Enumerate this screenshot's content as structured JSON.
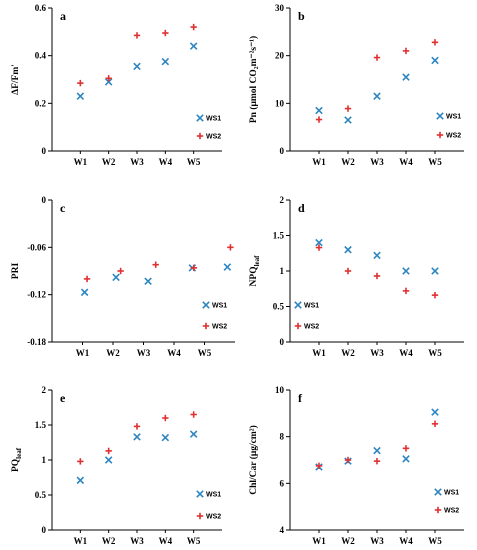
{
  "colors": {
    "WS1": "#2e86c1",
    "WS2": "#e03030"
  },
  "chart_data": [
    {
      "type": "scatter",
      "letter": "a",
      "ylabel": "ΔF/Fm'",
      "ylim": [
        0,
        0.6
      ],
      "yticks": [
        0,
        0.2,
        0.4,
        0.6
      ],
      "ytick_labels": [
        "0",
        "0.2",
        "0.4",
        "0.6"
      ],
      "categories": [
        "W1",
        "W2",
        "W3",
        "W4",
        "W5"
      ],
      "legend": [
        "WS1",
        "WS2"
      ],
      "series": [
        {
          "name": "WS1",
          "values": [
            0.23,
            0.29,
            0.355,
            0.375,
            0.44
          ]
        },
        {
          "name": "WS2",
          "values": [
            0.285,
            0.305,
            0.485,
            0.495,
            0.52
          ]
        }
      ]
    },
    {
      "type": "scatter",
      "letter": "b",
      "ylabel": "Pn (μmol CO₂m⁻²s⁻¹)",
      "ylim": [
        0,
        30
      ],
      "yticks": [
        0,
        10,
        20,
        30
      ],
      "ytick_labels": [
        "0",
        "10",
        "20",
        "30"
      ],
      "categories": [
        "W1",
        "W2",
        "W3",
        "W4",
        "W5"
      ],
      "legend": [
        "WS1",
        "WS2"
      ],
      "series": [
        {
          "name": "WS1",
          "values": [
            8.5,
            6.5,
            11.5,
            15.5,
            19.0
          ]
        },
        {
          "name": "WS2",
          "values": [
            6.6,
            8.9,
            19.6,
            21.0,
            22.8
          ]
        }
      ]
    },
    {
      "type": "scatter",
      "letter": "c",
      "ylabel": "PRI",
      "ylim": [
        -0.18,
        0
      ],
      "yticks": [
        0,
        -0.06,
        -0.12,
        -0.18
      ],
      "ytick_labels": [
        "0",
        "-0.06",
        "-0.12",
        "-0.18"
      ],
      "categories": [
        "W1",
        "W2",
        "W3",
        "W4",
        "W5"
      ],
      "legend": [
        "WS1",
        "WS2"
      ],
      "series": [
        {
          "name": "WS1",
          "x": [
            1.07,
            2.1,
            3.15,
            4.6,
            5.75
          ],
          "values": [
            -0.117,
            -0.098,
            -0.103,
            -0.086,
            -0.085
          ]
        },
        {
          "name": "WS2",
          "x": [
            1.15,
            2.25,
            3.4,
            4.65,
            5.85
          ],
          "values": [
            -0.1,
            -0.09,
            -0.082,
            -0.086,
            -0.06
          ]
        }
      ]
    },
    {
      "type": "scatter",
      "letter": "d",
      "ylabel": "NPQleaf",
      "ylim": [
        0,
        2
      ],
      "yticks": [
        0,
        0.5,
        1,
        1.5,
        2
      ],
      "ytick_labels": [
        "0",
        "0.5",
        "1",
        "1.5",
        "2"
      ],
      "categories": [
        "W1",
        "W2",
        "W3",
        "W4",
        "W5"
      ],
      "legend": [
        "WS1",
        "WS2"
      ],
      "series": [
        {
          "name": "WS1",
          "values": [
            1.4,
            1.3,
            1.22,
            1.0,
            1.0
          ]
        },
        {
          "name": "WS2",
          "values": [
            1.33,
            1.0,
            0.93,
            0.72,
            0.66
          ]
        }
      ]
    },
    {
      "type": "scatter",
      "letter": "e",
      "ylabel": "PQleaf",
      "ylim": [
        0,
        2
      ],
      "yticks": [
        0,
        0.5,
        1,
        1.5,
        2
      ],
      "ytick_labels": [
        "0",
        "0.5",
        "1",
        "1.5",
        "2"
      ],
      "categories": [
        "W1",
        "W2",
        "W3",
        "W4",
        "W5"
      ],
      "legend": [
        "WS1",
        "WS2"
      ],
      "series": [
        {
          "name": "WS1",
          "values": [
            0.71,
            1.0,
            1.33,
            1.32,
            1.37
          ]
        },
        {
          "name": "WS2",
          "values": [
            0.98,
            1.13,
            1.48,
            1.6,
            1.65
          ]
        }
      ]
    },
    {
      "type": "scatter",
      "letter": "f",
      "ylabel": "Chl/Car (μg/cm²)",
      "ylim": [
        4,
        10
      ],
      "yticks": [
        4,
        6,
        8,
        10
      ],
      "ytick_labels": [
        "4",
        "6",
        "8",
        "10"
      ],
      "categories": [
        "W1",
        "W2",
        "W3",
        "W4",
        "W5"
      ],
      "legend": [
        "WS1",
        "WS2"
      ],
      "series": [
        {
          "name": "WS1",
          "values": [
            6.7,
            6.95,
            7.4,
            7.05,
            9.05
          ]
        },
        {
          "name": "WS2",
          "values": [
            6.75,
            7.0,
            6.95,
            7.5,
            8.55
          ]
        }
      ]
    }
  ]
}
